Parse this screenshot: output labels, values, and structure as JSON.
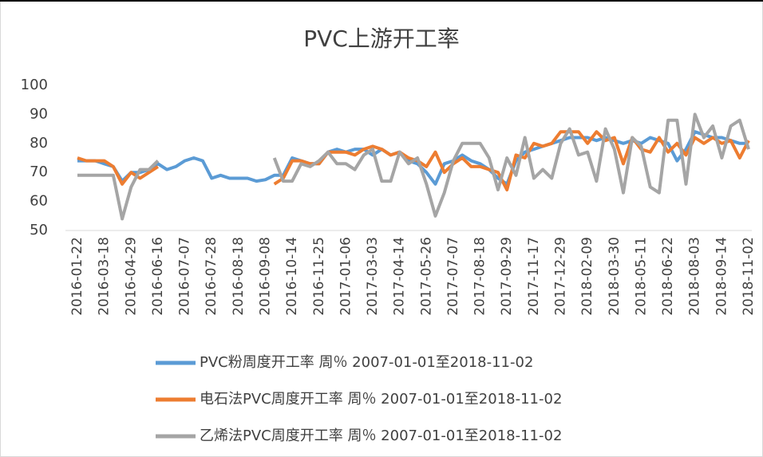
{
  "chart_data": {
    "type": "line",
    "title": "PVC上游开工率",
    "categories": [
      "2016-01-22",
      null,
      null,
      "2016-03-18",
      null,
      null,
      "2016-04-29",
      null,
      null,
      "2016-06-16",
      null,
      null,
      "2016-07-07",
      null,
      null,
      "2016-07-28",
      null,
      null,
      "2016-08-18",
      null,
      null,
      "2016-09-08",
      null,
      null,
      "2016-10-14",
      null,
      null,
      "2016-11-25",
      null,
      null,
      "2017-01-06",
      null,
      null,
      "2017-03-03",
      null,
      null,
      "2017-04-14",
      null,
      null,
      "2017-05-26",
      null,
      null,
      "2017-07-07",
      null,
      null,
      "2017-08-18",
      null,
      null,
      "2017-09-29",
      null,
      null,
      "2017-11-17",
      null,
      null,
      "2017-12-29",
      null,
      null,
      "2018-02-09",
      null,
      null,
      "2018-03-30",
      null,
      null,
      "2018-05-11",
      null,
      null,
      "2018-06-22",
      null,
      null,
      "2018-08-03",
      null,
      null,
      "2018-09-14",
      null,
      null,
      "2018-11-02"
    ],
    "series": [
      {
        "name": "PVC粉周度开工率 周％ 2007-01-01至2018-11-02",
        "color": "#5b9bd5",
        "values": [
          74,
          74,
          74,
          73,
          72,
          67,
          70,
          70,
          71,
          73,
          71,
          72,
          74,
          75,
          74,
          68,
          69,
          68,
          68,
          68,
          67,
          67.5,
          69,
          69,
          75,
          74,
          73,
          73,
          77,
          78,
          77,
          78,
          78,
          76,
          78,
          76,
          77,
          74,
          73,
          70,
          66,
          73,
          74,
          76,
          74,
          73,
          71,
          68,
          66,
          74,
          77,
          78,
          79,
          80,
          81,
          82,
          82,
          82,
          81,
          82,
          81,
          80,
          81,
          80,
          82,
          81,
          80,
          74,
          78,
          84,
          83,
          82,
          82,
          81,
          80,
          80
        ]
      },
      {
        "name": "电石法PVC周度开工率 周％ 2007-01-01至2018-11-02",
        "color": "#ed7d31",
        "values": [
          75,
          74,
          74,
          74,
          72,
          66,
          70,
          68,
          70,
          72,
          null,
          null,
          null,
          null,
          null,
          null,
          null,
          null,
          null,
          null,
          null,
          null,
          66,
          68,
          74,
          74,
          73,
          73,
          77,
          77,
          77,
          76,
          78,
          79,
          78,
          76,
          77,
          75,
          74,
          72,
          77,
          70,
          73,
          75,
          72,
          72,
          71,
          70,
          64,
          76,
          75,
          80,
          79,
          80,
          84,
          84,
          84,
          80,
          84,
          81,
          82,
          73,
          82,
          78,
          77,
          82,
          77,
          80,
          76,
          82,
          80,
          82,
          80,
          81,
          75,
          81
        ]
      },
      {
        "name": "乙烯法PVC周度开工率 周％ 2007-01-01至2018-11-02",
        "color": "#a5a5a5",
        "values": [
          69,
          69,
          69,
          69,
          69,
          54,
          65,
          71,
          71,
          74,
          null,
          null,
          null,
          null,
          null,
          null,
          null,
          null,
          null,
          null,
          null,
          null,
          75,
          67,
          67,
          73,
          72,
          74,
          77,
          73,
          73,
          71,
          76,
          78,
          67,
          67,
          77,
          73,
          75,
          66,
          55,
          63,
          74,
          80,
          80,
          80,
          75,
          64,
          75,
          69,
          82,
          68,
          71,
          68,
          80,
          85,
          76,
          77,
          67,
          85,
          78,
          63,
          82,
          79,
          65,
          63,
          88,
          88,
          66,
          90,
          82,
          86,
          75,
          86,
          88,
          78
        ]
      }
    ],
    "ylim": [
      50,
      100
    ],
    "yticks": [
      50,
      60,
      70,
      80,
      90,
      100
    ]
  }
}
